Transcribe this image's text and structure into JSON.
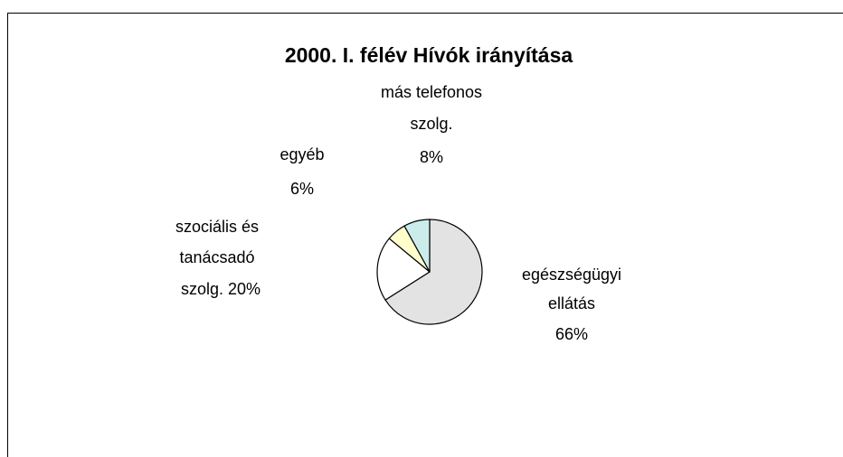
{
  "chart_data": {
    "type": "pie",
    "title": "2000. I. félév Hívók irányítása",
    "categories": [
      "egészségügyi ellátás",
      "szociális és tanácsadó szolg.",
      "egyéb",
      "más telefonos szolg."
    ],
    "values": [
      66,
      20,
      6,
      8
    ],
    "value_labels": [
      "66%",
      "20%",
      "6%",
      "8%"
    ],
    "colors": [
      "#e3e3e3",
      "#ffffff",
      "#ffffcc",
      "#ccecec"
    ]
  }
}
